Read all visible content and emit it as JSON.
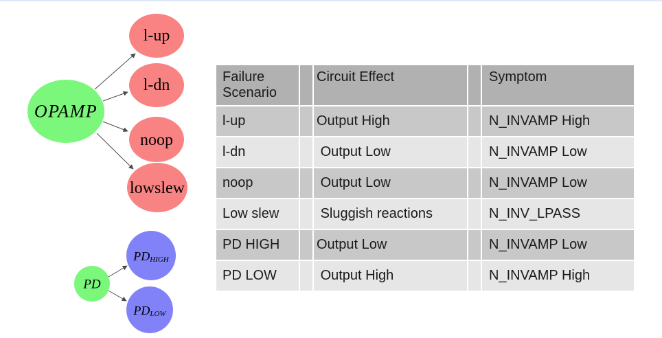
{
  "page": {
    "background": "#ffffff",
    "top_line_color": "#dce9f8"
  },
  "diagram": {
    "colors": {
      "root_fill": "#7bf77b",
      "failure_fill": "#f98383",
      "pd_mode_fill": "#8182f7",
      "arrow": "#4a4a4a",
      "label": "#000000"
    },
    "opamp": {
      "label": "OPAMP"
    },
    "failures": [
      {
        "label": "l-up"
      },
      {
        "label": "l-dn"
      },
      {
        "label": "noop"
      },
      {
        "label": "lowslew"
      }
    ],
    "pd": {
      "label": "PD"
    },
    "pd_modes": [
      {
        "base": "PD",
        "sub": "HIGH"
      },
      {
        "base": "PD",
        "sub": "LOW"
      }
    ]
  },
  "table": {
    "colors": {
      "header_bg": "#b1b1b1",
      "row_dark_bg": "#c8c8c8",
      "row_light_bg": "#e6e6e6",
      "text": "#1a1a1a",
      "grid": "#ffffff"
    },
    "headers": [
      "Failure Scenario",
      "Circuit Effect",
      "Symptom"
    ],
    "rows": [
      {
        "cells": [
          "l-up",
          "Output High",
          "N_INVAMP High"
        ]
      },
      {
        "cells": [
          "l-dn",
          " Output Low",
          "N_INVAMP Low"
        ]
      },
      {
        "cells": [
          "noop",
          " Output Low",
          "N_INVAMP Low"
        ]
      },
      {
        "cells": [
          "Low slew",
          " Sluggish reactions",
          "N_INV_LPASS"
        ]
      },
      {
        "cells": [
          "PD HIGH",
          "Output Low",
          "N_INVAMP Low"
        ]
      },
      {
        "cells": [
          "PD LOW",
          " Output High",
          "N_INVAMP High"
        ]
      }
    ]
  }
}
